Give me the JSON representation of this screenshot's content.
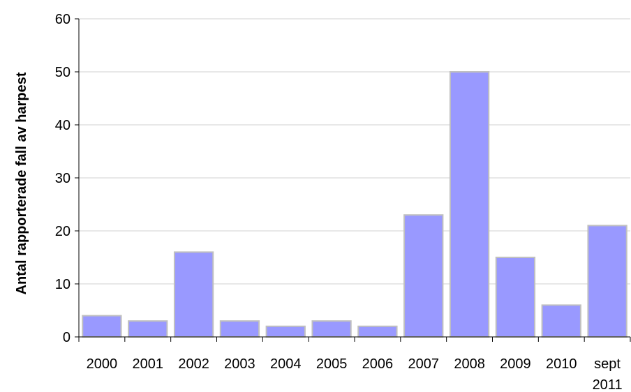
{
  "chart_data": {
    "type": "bar",
    "title": "",
    "xlabel": "",
    "ylabel": "Antal rapporterade fall av harpest",
    "categories": [
      "2000",
      "2001",
      "2002",
      "2003",
      "2004",
      "2005",
      "2006",
      "2007",
      "2008",
      "2009",
      "2010",
      "sept 2011"
    ],
    "series": [
      {
        "values": [
          4,
          3,
          16,
          3,
          2,
          3,
          2,
          23,
          50,
          15,
          6,
          21
        ]
      }
    ],
    "ylim": [
      0,
      60
    ],
    "yticks": [
      0,
      10,
      20,
      30,
      40,
      50,
      60
    ],
    "grid": true,
    "legend": "none",
    "colors": {
      "bar_fill": "#9999ff",
      "bar_stroke": "#c0c0c0",
      "grid": "#d0d0d0",
      "axis": "#000000"
    }
  }
}
